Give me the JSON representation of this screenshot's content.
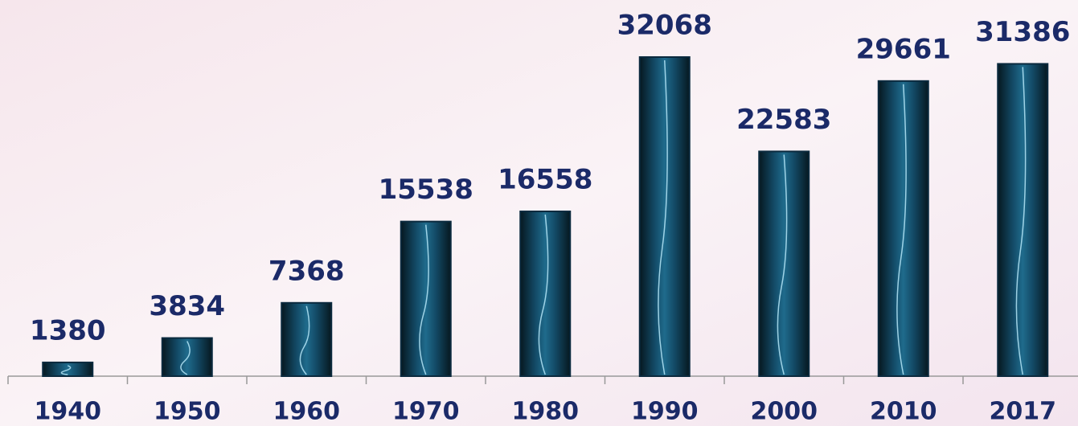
{
  "chart_data": {
    "type": "bar",
    "categories": [
      "1940",
      "1950",
      "1960",
      "1970",
      "1980",
      "1990",
      "2000",
      "2010",
      "2017"
    ],
    "values": [
      1380,
      3834,
      7368,
      15538,
      16558,
      32068,
      22583,
      29661,
      31386
    ],
    "color": "#0b2a3e"
  }
}
